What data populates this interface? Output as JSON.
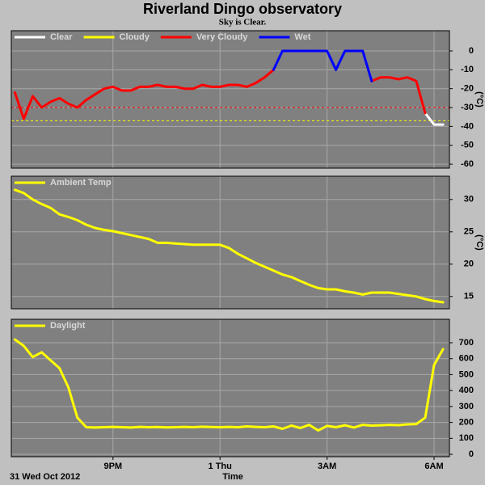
{
  "title": "Riverland Dingo observatory",
  "subtitle": "Sky is Clear.",
  "chart_data": [
    {
      "type": "line",
      "ylabel": "(°C)",
      "x": [
        18.25,
        18.5,
        18.75,
        19,
        19.25,
        19.5,
        19.75,
        20,
        20.25,
        20.5,
        20.75,
        21,
        21.25,
        21.5,
        21.75,
        22,
        22.25,
        22.5,
        22.75,
        23,
        23.25,
        23.5,
        23.75,
        24,
        24.25,
        24.5,
        24.75,
        25,
        25.25,
        25.5,
        25.75,
        26,
        26.25,
        26.5,
        26.75,
        27,
        27.25,
        27.5,
        27.75,
        28,
        28.25,
        28.5,
        28.75,
        29,
        29.25,
        29.5,
        29.75,
        30,
        30.25
      ],
      "series": [
        {
          "name": "Clear",
          "color": "#ffffff",
          "values": [
            null,
            null,
            null,
            null,
            null,
            null,
            null,
            null,
            null,
            null,
            null,
            null,
            null,
            null,
            null,
            null,
            null,
            null,
            null,
            null,
            null,
            null,
            null,
            null,
            null,
            null,
            null,
            null,
            null,
            null,
            null,
            null,
            null,
            null,
            null,
            null,
            null,
            null,
            null,
            null,
            null,
            null,
            null,
            null,
            null,
            null,
            -33,
            -39,
            -39
          ]
        },
        {
          "name": "Cloudy",
          "color": "#ffff00",
          "values": [
            null,
            -36,
            null,
            null,
            null,
            null,
            null,
            null,
            null,
            null,
            null,
            null,
            null,
            null,
            null,
            null,
            null,
            null,
            null,
            null,
            null,
            null,
            null,
            null,
            null,
            null,
            null,
            null,
            null,
            null,
            null,
            null,
            null,
            null,
            null,
            null,
            null,
            null,
            null,
            null,
            null,
            null,
            null,
            null,
            null,
            null,
            null,
            null,
            null
          ]
        },
        {
          "name": "Very Cloudy",
          "color": "#ff0000",
          "values": [
            -22,
            -36,
            -24,
            -30,
            -27,
            -25,
            -28,
            -30,
            -26,
            -23,
            -20,
            -19,
            -21,
            -21,
            -19,
            -19,
            -18,
            -19,
            -19,
            -20,
            -20,
            -18,
            -19,
            -19,
            -18,
            -18,
            -19,
            -17,
            -14,
            -10,
            null,
            null,
            null,
            null,
            null,
            null,
            null,
            null,
            null,
            null,
            -16,
            -14,
            -14,
            -15,
            -14,
            -16,
            -33,
            null,
            null
          ]
        },
        {
          "name": "Wet",
          "color": "#0000ff",
          "values": [
            null,
            null,
            null,
            null,
            null,
            null,
            null,
            null,
            null,
            null,
            null,
            null,
            null,
            null,
            null,
            null,
            null,
            null,
            null,
            null,
            null,
            null,
            null,
            null,
            null,
            null,
            null,
            null,
            null,
            -10,
            0,
            0,
            0,
            0,
            0,
            0,
            -10,
            0,
            0,
            0,
            -16,
            null,
            null,
            null,
            null,
            null,
            null,
            null,
            null
          ]
        }
      ],
      "thresholds": [
        {
          "value": -30,
          "color": "#ff0000"
        },
        {
          "value": -37,
          "color": "#ffff00"
        }
      ],
      "xlim": [
        18.15,
        30.43
      ],
      "xticks": [
        21,
        24,
        27,
        30
      ],
      "ylim": [
        -62.1,
        10.7
      ],
      "yticks": [
        0,
        -10,
        -20,
        -30,
        -40,
        -50,
        -60
      ],
      "grid": true
    },
    {
      "type": "line",
      "ylabel": "(°C)",
      "x": [
        18.25,
        18.5,
        18.75,
        19,
        19.25,
        19.5,
        19.75,
        20,
        20.25,
        20.5,
        20.75,
        21,
        21.25,
        21.5,
        21.75,
        22,
        22.25,
        22.5,
        22.75,
        23,
        23.25,
        23.5,
        23.75,
        24,
        24.25,
        24.5,
        24.75,
        25,
        25.25,
        25.5,
        25.75,
        26,
        26.25,
        26.5,
        26.75,
        27,
        27.25,
        27.5,
        27.75,
        28,
        28.25,
        28.5,
        28.75,
        29,
        29.25,
        29.5,
        29.75,
        30,
        30.25
      ],
      "series": [
        {
          "name": "Ambient Temp",
          "color": "#ffff00",
          "values": [
            31.5,
            31,
            30,
            29.3,
            28.7,
            27.7,
            27.3,
            26.8,
            26.1,
            25.6,
            25.3,
            25.1,
            24.8,
            24.5,
            24.2,
            23.9,
            23.3,
            23.3,
            23.2,
            23.1,
            23,
            23,
            23,
            23,
            22.5,
            21.6,
            20.9,
            20.2,
            19.6,
            19,
            18.4,
            18,
            17.4,
            16.8,
            16.3,
            16.1,
            16.1,
            15.8,
            15.6,
            15.3,
            15.6,
            15.6,
            15.6,
            15.4,
            15.2,
            15,
            14.6,
            14.3,
            14.1
          ]
        }
      ],
      "xlim": [
        18.15,
        30.43
      ],
      "xticks": [
        21,
        24,
        27,
        30
      ],
      "ylim": [
        13.1,
        33.6
      ],
      "yticks": [
        15,
        20,
        25,
        30
      ],
      "grid": true
    },
    {
      "type": "line",
      "xlabel": "Time",
      "annotation": "31 Wed Oct 2012",
      "x": [
        18.25,
        18.5,
        18.75,
        19,
        19.25,
        19.5,
        19.75,
        20,
        20.25,
        20.5,
        20.75,
        21,
        21.25,
        21.5,
        21.75,
        22,
        22.25,
        22.5,
        22.75,
        23,
        23.25,
        23.5,
        23.75,
        24,
        24.25,
        24.5,
        24.75,
        25,
        25.25,
        25.5,
        25.75,
        26,
        26.25,
        26.5,
        26.75,
        27,
        27.25,
        27.5,
        27.75,
        28,
        28.25,
        28.5,
        28.75,
        29,
        29.25,
        29.5,
        29.75,
        30,
        30.25
      ],
      "series": [
        {
          "name": "Daylight",
          "color": "#ffff00",
          "values": [
            720,
            680,
            610,
            640,
            590,
            540,
            420,
            230,
            170,
            168,
            170,
            172,
            170,
            168,
            172,
            170,
            171,
            169,
            170,
            172,
            170,
            173,
            171,
            170,
            172,
            170,
            175,
            172,
            170,
            175,
            160,
            180,
            165,
            185,
            150,
            178,
            170,
            182,
            168,
            185,
            180,
            182,
            185,
            183,
            188,
            190,
            230,
            560,
            660
          ]
        }
      ],
      "xlim": [
        18.15,
        30.43
      ],
      "xticks": [
        {
          "value": 21,
          "label": "9PM"
        },
        {
          "value": 24,
          "label": "1 Thu"
        },
        {
          "value": 27,
          "label": "3AM"
        },
        {
          "value": 30,
          "label": "6AM"
        }
      ],
      "ylim": [
        -15,
        847
      ],
      "yticks": [
        0,
        100,
        200,
        300,
        400,
        500,
        600,
        700
      ],
      "grid": true
    }
  ]
}
